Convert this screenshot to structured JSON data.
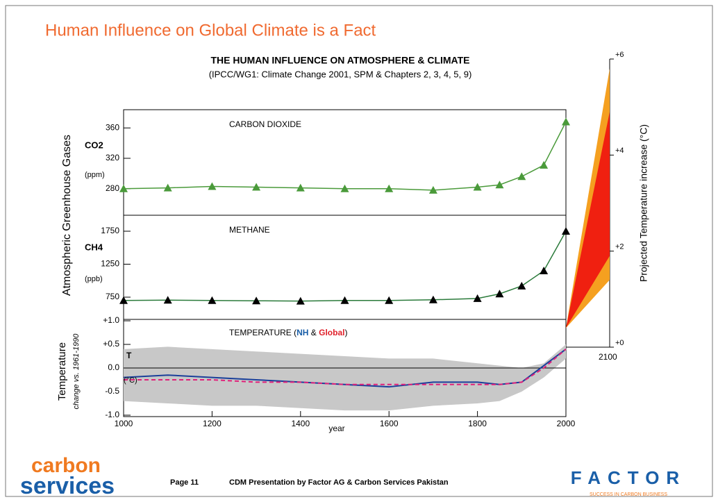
{
  "slide": {
    "title": "Human Influence on Global Climate is a Fact",
    "figure_title": "THE HUMAN INFLUENCE ON ATMOSPHERE & CLIMATE",
    "figure_subtitle": "(IPCC/WG1: Climate Change 2001, SPM & Chapters 2, 3, 4, 5, 9)",
    "left_axis_label": "Atmospheric Greenhouse Gases",
    "footer": {
      "page": "Page 11",
      "text": "CDM Presentation by Factor AG & Carbon Services Pakistan",
      "logo_left_top": "carbon",
      "logo_left_bottom": "services",
      "logo_right": "FACTOR",
      "logo_right_tagline": "SUCCESS IN CARBON BUSINESS"
    }
  },
  "chart_data": [
    {
      "type": "line",
      "title": "CARBON DIOXIDE",
      "ylabel": "CO2",
      "yunit": "(ppm)",
      "x": [
        1000,
        1100,
        1200,
        1300,
        1400,
        1500,
        1600,
        1700,
        1800,
        1850,
        1900,
        1950,
        2000
      ],
      "series": [
        {
          "color": "#4a9a3a",
          "values": [
            280,
            281,
            283,
            282,
            281,
            280,
            280,
            278,
            282,
            285,
            296,
            311,
            368
          ]
        }
      ],
      "xlim": [
        1000,
        2000
      ],
      "ylim": [
        245,
        384
      ],
      "yticks": [
        360,
        320,
        280
      ]
    },
    {
      "type": "line",
      "title": "METHANE",
      "ylabel": "CH4",
      "yunit": "(ppb)",
      "x": [
        1000,
        1100,
        1200,
        1300,
        1400,
        1500,
        1600,
        1700,
        1800,
        1850,
        1900,
        1950,
        2000
      ],
      "series": [
        {
          "color": "#2a7a3a",
          "values": [
            700,
            705,
            700,
            695,
            690,
            700,
            700,
            710,
            730,
            800,
            920,
            1150,
            1750
          ]
        }
      ],
      "xlim": [
        1000,
        2000
      ],
      "ylim": [
        413,
        1992
      ],
      "yticks": [
        1750,
        1250,
        750
      ]
    },
    {
      "type": "line",
      "title_parts": [
        "TEMPERATURE (",
        "NH",
        " & ",
        "Global",
        ")"
      ],
      "title_colors": [
        "#000000",
        "#1a5fa8",
        "#000000",
        "#e0202a",
        "#000000"
      ],
      "ylabel": "Temperature",
      "ylabel_sub": "change vs. 1961-1990",
      "yunit_symbol": "T",
      "yunit": "(°C)",
      "xlabel": "year",
      "x": [
        1000,
        1100,
        1200,
        1300,
        1400,
        1500,
        1600,
        1700,
        1800,
        1850,
        1900,
        1950,
        2000
      ],
      "band_lower": [
        -0.7,
        -0.75,
        -0.8,
        -0.8,
        -0.85,
        -0.9,
        -0.9,
        -0.8,
        -0.75,
        -0.7,
        -0.5,
        -0.2,
        0.2
      ],
      "band_upper": [
        0.4,
        0.45,
        0.4,
        0.35,
        0.3,
        0.25,
        0.2,
        0.2,
        0.1,
        0.05,
        0.0,
        0.1,
        0.5
      ],
      "series": [
        {
          "color": "#1a3f9a",
          "values": [
            -0.2,
            -0.15,
            -0.2,
            -0.25,
            -0.3,
            -0.35,
            -0.4,
            -0.3,
            -0.3,
            -0.35,
            -0.3,
            0.05,
            0.4
          ]
        },
        {
          "color": "#e0207a",
          "values": [
            -0.25,
            -0.25,
            -0.25,
            -0.3,
            -0.3,
            -0.35,
            -0.35,
            -0.35,
            -0.35,
            -0.35,
            -0.3,
            0.0,
            0.4
          ]
        }
      ],
      "xlim": [
        1000,
        2000
      ],
      "ylim": [
        -1.03,
        1.03
      ],
      "yticks": [
        {
          "value": 1.0,
          "label": "+1.0"
        },
        {
          "value": 0.5,
          "label": "+0.5"
        },
        {
          "value": 0.0,
          "label": "0.0"
        },
        {
          "value": -0.5,
          "label": "-0.5"
        },
        {
          "value": -1.0,
          "label": "-1.0"
        }
      ],
      "xticks": [
        1000,
        1200,
        1400,
        1600,
        1800,
        2000
      ]
    },
    {
      "type": "area",
      "ylabel": "Projected Temperature increase  (°C)",
      "x": [
        2000,
        2100
      ],
      "xticks": [
        2100
      ],
      "xlim": [
        2000,
        2100
      ],
      "ylim": [
        0,
        6
      ],
      "yticks": [
        {
          "value": 6,
          "label": "+6"
        },
        {
          "value": 4,
          "label": "+4"
        },
        {
          "value": 2,
          "label": "+2"
        },
        {
          "value": 0,
          "label": "+0"
        }
      ],
      "series": [
        {
          "color": "#f5a020",
          "lower": [
            0.4,
            1.4
          ],
          "upper": [
            0.4,
            5.8
          ]
        },
        {
          "color": "#f02010",
          "lower": [
            0.4,
            1.9
          ],
          "upper": [
            0.4,
            4.9
          ]
        }
      ]
    }
  ]
}
